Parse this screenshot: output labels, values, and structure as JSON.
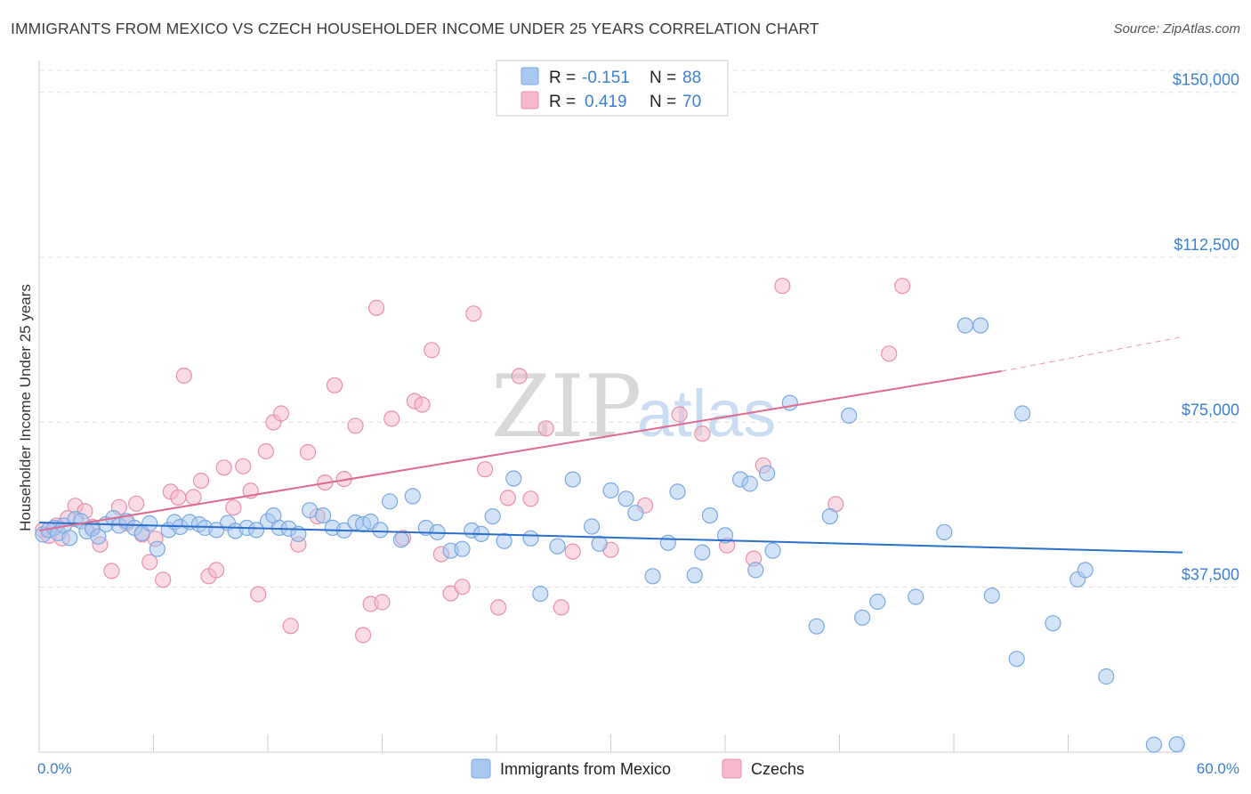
{
  "header": {
    "title": "IMMIGRANTS FROM MEXICO VS CZECH HOUSEHOLDER INCOME UNDER 25 YEARS CORRELATION CHART",
    "source": "Source: ZipAtlas.com"
  },
  "watermark": {
    "zip": "ZIP",
    "atlas": "atlas"
  },
  "colors": {
    "blue_fill": "#a8c8f0",
    "blue_stroke": "#7aa9e0",
    "blue_line": "#2b6fcc",
    "pink_fill": "#f5b8ca",
    "pink_stroke": "#e890ad",
    "pink_line": "#e06990",
    "grid": "#dddddd",
    "axis_label": "#3d7fd0"
  },
  "legend": {
    "rows": [
      {
        "r_label": "R =",
        "r_value": "-0.151",
        "n_label": "N =",
        "n_value": "88"
      },
      {
        "r_label": "R =",
        "r_value": "0.419",
        "n_label": "N =",
        "n_value": "70"
      }
    ]
  },
  "bottom_legend": {
    "items": [
      {
        "label": "Immigrants from Mexico"
      },
      {
        "label": "Czechs"
      }
    ]
  },
  "chart_data": {
    "type": "scatter",
    "title": "IMMIGRANTS FROM MEXICO VS CZECH HOUSEHOLDER INCOME UNDER 25 YEARS CORRELATION CHART",
    "xlabel": "",
    "ylabel": "Householder Income Under 25 years",
    "xlim": [
      0,
      60
    ],
    "ylim": [
      0,
      155000
    ],
    "x_tick_labels": [
      "0.0%",
      "60.0%"
    ],
    "y_ticks": [
      37500,
      75000,
      112500,
      150000
    ],
    "y_tick_labels": [
      "$37,500",
      "$75,000",
      "$112,500",
      "$150,000"
    ],
    "grid": true,
    "legend_position": "top-center",
    "series": [
      {
        "name": "Immigrants from Mexico",
        "r": -0.151,
        "n": 88,
        "trend": {
          "x": [
            0,
            60
          ],
          "y": [
            52200,
            45400
          ]
        },
        "points": [
          [
            0.2,
            49500
          ],
          [
            0.5,
            50500
          ],
          [
            0.8,
            51000
          ],
          [
            1.0,
            49800
          ],
          [
            1.3,
            51500
          ],
          [
            1.6,
            48700
          ],
          [
            1.9,
            53000
          ],
          [
            2.2,
            52500
          ],
          [
            2.5,
            50200
          ],
          [
            2.8,
            50800
          ],
          [
            3.1,
            49000
          ],
          [
            3.5,
            51800
          ],
          [
            3.9,
            53200
          ],
          [
            4.2,
            51500
          ],
          [
            4.6,
            52500
          ],
          [
            5.0,
            51000
          ],
          [
            5.4,
            49800
          ],
          [
            5.8,
            52000
          ],
          [
            6.2,
            46200
          ],
          [
            6.8,
            50500
          ],
          [
            7.1,
            52300
          ],
          [
            7.4,
            51200
          ],
          [
            7.9,
            52300
          ],
          [
            8.4,
            51800
          ],
          [
            8.7,
            51000
          ],
          [
            9.3,
            50500
          ],
          [
            9.9,
            52100
          ],
          [
            10.3,
            50300
          ],
          [
            10.9,
            51000
          ],
          [
            11.4,
            50500
          ],
          [
            12.0,
            52500
          ],
          [
            12.3,
            53800
          ],
          [
            12.6,
            51000
          ],
          [
            13.1,
            50800
          ],
          [
            13.6,
            49600
          ],
          [
            14.2,
            55000
          ],
          [
            14.9,
            53800
          ],
          [
            15.4,
            51000
          ],
          [
            16.0,
            50400
          ],
          [
            16.6,
            52200
          ],
          [
            17.0,
            51800
          ],
          [
            17.4,
            52400
          ],
          [
            17.9,
            50500
          ],
          [
            18.4,
            57000
          ],
          [
            19.0,
            48300
          ],
          [
            19.6,
            58200
          ],
          [
            20.3,
            51000
          ],
          [
            20.9,
            50000
          ],
          [
            21.6,
            45800
          ],
          [
            22.2,
            46200
          ],
          [
            22.7,
            50400
          ],
          [
            23.2,
            49600
          ],
          [
            23.8,
            53600
          ],
          [
            24.4,
            48000
          ],
          [
            24.9,
            62200
          ],
          [
            25.8,
            48600
          ],
          [
            26.3,
            36000
          ],
          [
            27.2,
            46800
          ],
          [
            28.0,
            62000
          ],
          [
            29.0,
            51300
          ],
          [
            29.4,
            47400
          ],
          [
            30.0,
            59500
          ],
          [
            30.8,
            57600
          ],
          [
            31.3,
            54400
          ],
          [
            32.2,
            40000
          ],
          [
            33.0,
            47600
          ],
          [
            33.5,
            59200
          ],
          [
            34.4,
            40200
          ],
          [
            34.8,
            45400
          ],
          [
            35.2,
            53800
          ],
          [
            36.0,
            49300
          ],
          [
            36.8,
            62000
          ],
          [
            37.3,
            61000
          ],
          [
            37.6,
            41400
          ],
          [
            38.2,
            63400
          ],
          [
            38.5,
            45800
          ],
          [
            39.4,
            79400
          ],
          [
            40.8,
            28600
          ],
          [
            41.5,
            53600
          ],
          [
            42.5,
            76500
          ],
          [
            43.2,
            30600
          ],
          [
            44.0,
            34200
          ],
          [
            46.0,
            35300
          ],
          [
            47.5,
            50000
          ],
          [
            48.6,
            97000
          ],
          [
            49.4,
            97000
          ],
          [
            50.0,
            35600
          ],
          [
            51.3,
            21200
          ],
          [
            51.6,
            77000
          ],
          [
            53.2,
            29300
          ],
          [
            54.5,
            39300
          ],
          [
            54.9,
            41400
          ],
          [
            56.0,
            17200
          ],
          [
            58.5,
            1700
          ],
          [
            59.7,
            1800
          ]
        ]
      },
      {
        "name": "Czechs",
        "r": 0.419,
        "n": 70,
        "trend": {
          "x": [
            0,
            50.5
          ],
          "y": [
            50400,
            86600
          ]
        },
        "trend_dashed_end": {
          "x": 60,
          "y": 94400
        },
        "points": [
          [
            0.2,
            50500
          ],
          [
            0.5,
            49200
          ],
          [
            0.9,
            51500
          ],
          [
            1.2,
            48600
          ],
          [
            1.5,
            53200
          ],
          [
            1.9,
            56000
          ],
          [
            2.4,
            54800
          ],
          [
            2.8,
            51200
          ],
          [
            3.2,
            47200
          ],
          [
            3.8,
            41200
          ],
          [
            4.2,
            55700
          ],
          [
            4.6,
            52000
          ],
          [
            5.1,
            56500
          ],
          [
            5.4,
            49500
          ],
          [
            5.8,
            43200
          ],
          [
            6.1,
            48500
          ],
          [
            6.5,
            39200
          ],
          [
            6.9,
            59200
          ],
          [
            7.3,
            57900
          ],
          [
            7.6,
            85600
          ],
          [
            8.1,
            58000
          ],
          [
            8.5,
            61700
          ],
          [
            8.9,
            40000
          ],
          [
            9.3,
            41400
          ],
          [
            9.7,
            64700
          ],
          [
            10.2,
            55600
          ],
          [
            10.7,
            65000
          ],
          [
            11.1,
            59400
          ],
          [
            11.5,
            35900
          ],
          [
            11.9,
            68400
          ],
          [
            12.3,
            75000
          ],
          [
            12.7,
            77000
          ],
          [
            13.2,
            28700
          ],
          [
            13.6,
            47200
          ],
          [
            14.1,
            68200
          ],
          [
            14.6,
            53600
          ],
          [
            15.0,
            61300
          ],
          [
            15.5,
            83400
          ],
          [
            16.0,
            62100
          ],
          [
            16.6,
            74200
          ],
          [
            17.0,
            26600
          ],
          [
            17.4,
            33700
          ],
          [
            17.7,
            101000
          ],
          [
            18.0,
            34100
          ],
          [
            18.5,
            75800
          ],
          [
            19.1,
            48700
          ],
          [
            19.7,
            79800
          ],
          [
            20.1,
            79000
          ],
          [
            20.6,
            91400
          ],
          [
            21.1,
            45000
          ],
          [
            21.6,
            36100
          ],
          [
            22.2,
            37600
          ],
          [
            22.8,
            99700
          ],
          [
            23.4,
            64300
          ],
          [
            24.1,
            32900
          ],
          [
            24.6,
            57800
          ],
          [
            25.2,
            85500
          ],
          [
            25.8,
            57600
          ],
          [
            26.6,
            73600
          ],
          [
            27.4,
            32900
          ],
          [
            28.0,
            45600
          ],
          [
            30.0,
            46000
          ],
          [
            31.8,
            56100
          ],
          [
            33.6,
            76800
          ],
          [
            34.8,
            72400
          ],
          [
            36.1,
            47000
          ],
          [
            37.5,
            44000
          ],
          [
            38.0,
            65200
          ],
          [
            39.0,
            106000
          ],
          [
            41.8,
            56400
          ],
          [
            44.6,
            90600
          ],
          [
            45.3,
            106000
          ]
        ]
      }
    ]
  }
}
